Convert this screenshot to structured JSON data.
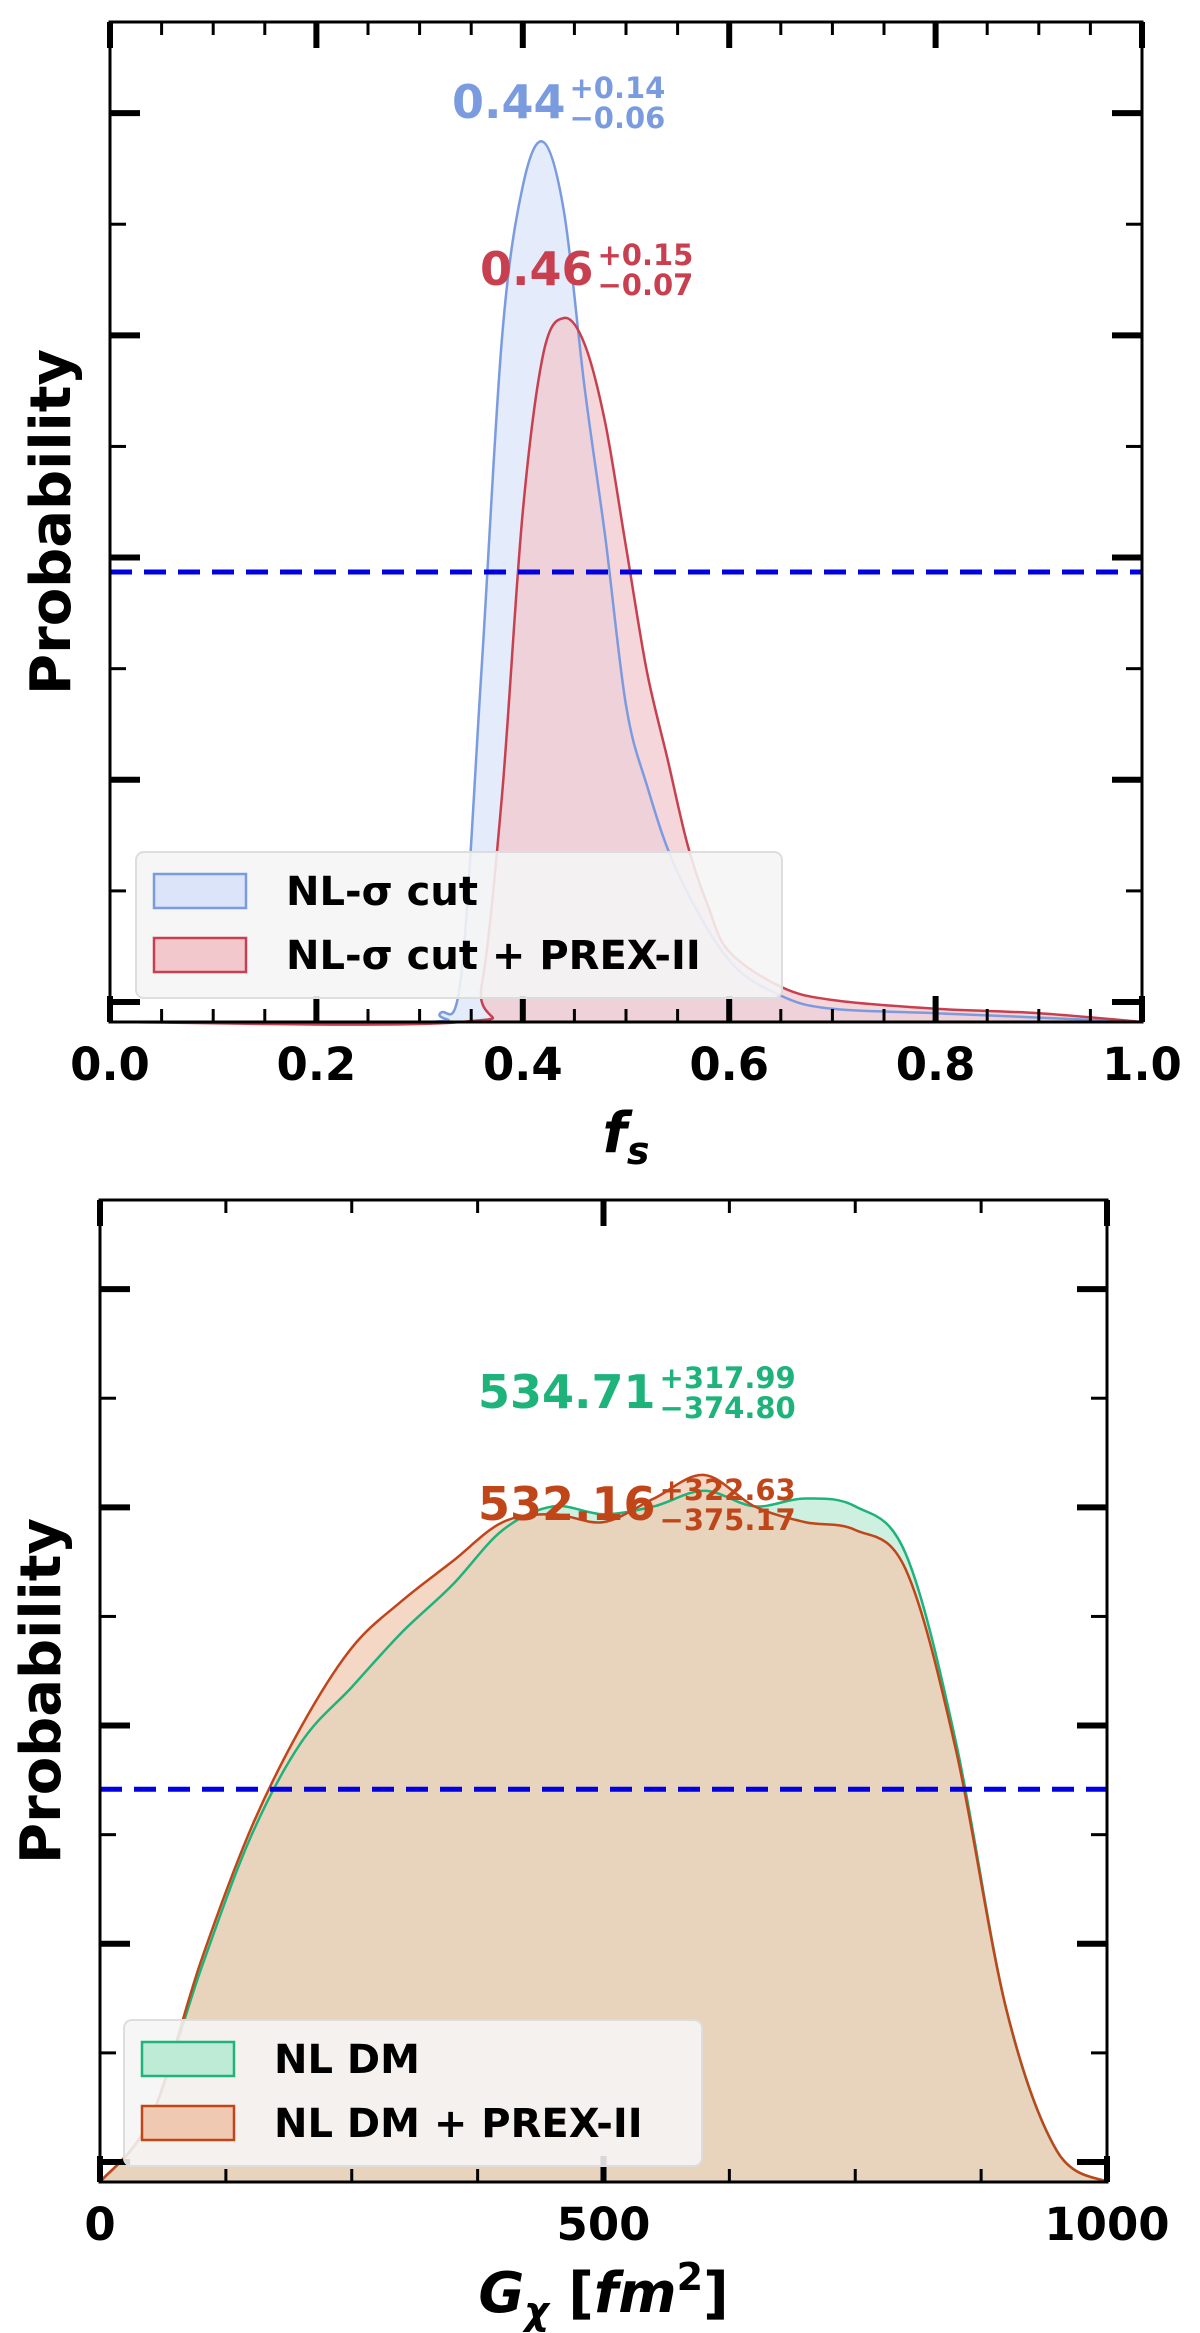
{
  "chart_data": [
    {
      "type": "area",
      "xlabel": "f",
      "xlabel_sub": "s",
      "ylabel": "Probability",
      "xlim": [
        0.0,
        1.0
      ],
      "x_ticks": [
        "0.0",
        "0.2",
        "0.4",
        "0.6",
        "0.8",
        "1.0"
      ],
      "x_tick_values": [
        0.0,
        0.2,
        0.4,
        0.6,
        0.8,
        1.0
      ],
      "legend_position": "lower-left",
      "reference_line": {
        "style": "dashed",
        "color": "#0000e0",
        "relative_height": 0.45
      },
      "series": [
        {
          "name": "NL-σ cut",
          "color": "#7b9be0",
          "fill": "#dbe4f8",
          "x": [
            0.0,
            0.3,
            0.32,
            0.34,
            0.36,
            0.38,
            0.4,
            0.42,
            0.44,
            0.46,
            0.48,
            0.5,
            0.52,
            0.55,
            0.6,
            0.65,
            0.7,
            0.8,
            0.9,
            1.0
          ],
          "y": [
            0.0,
            0.0,
            0.01,
            0.05,
            0.4,
            0.78,
            0.95,
            1.0,
            0.92,
            0.72,
            0.55,
            0.36,
            0.27,
            0.17,
            0.07,
            0.03,
            0.015,
            0.01,
            0.005,
            0.0
          ],
          "annotation": {
            "value": "0.44",
            "upper": "+0.14",
            "lower": "−0.06"
          }
        },
        {
          "name": "NL-σ cut + PREX-II",
          "color": "#c8404f",
          "fill": "#f2c8cd",
          "x": [
            0.0,
            0.34,
            0.36,
            0.38,
            0.4,
            0.42,
            0.44,
            0.46,
            0.48,
            0.5,
            0.52,
            0.54,
            0.56,
            0.58,
            0.6,
            0.65,
            0.7,
            0.8,
            0.9,
            1.0
          ],
          "y": [
            0.0,
            0.0,
            0.04,
            0.26,
            0.58,
            0.76,
            0.8,
            0.77,
            0.68,
            0.54,
            0.4,
            0.3,
            0.2,
            0.13,
            0.08,
            0.04,
            0.025,
            0.015,
            0.01,
            0.0
          ],
          "annotation": {
            "value": "0.46",
            "upper": "+0.15",
            "lower": "−0.07"
          }
        }
      ]
    },
    {
      "type": "area",
      "xlabel": "G",
      "xlabel_sub": "χ",
      "xlabel_unit": "fm",
      "xlabel_sup": "2",
      "ylabel": "Probability",
      "xlim": [
        0,
        1000
      ],
      "x_ticks": [
        "0",
        "500",
        "1000"
      ],
      "x_tick_values": [
        0,
        500,
        1000
      ],
      "legend_position": "lower-left",
      "reference_line": {
        "style": "dashed",
        "color": "#0000e0",
        "relative_height": 0.4
      },
      "series": [
        {
          "name": "NL DM",
          "color": "#1db37a",
          "fill": "#bdebd5",
          "x": [
            0,
            50,
            100,
            150,
            200,
            250,
            300,
            350,
            400,
            450,
            500,
            550,
            600,
            650,
            700,
            750,
            800,
            850,
            900,
            950,
            1000
          ],
          "y": [
            0.0,
            0.08,
            0.27,
            0.44,
            0.56,
            0.63,
            0.7,
            0.76,
            0.83,
            0.86,
            0.85,
            0.86,
            0.88,
            0.86,
            0.87,
            0.86,
            0.8,
            0.56,
            0.22,
            0.04,
            0.0
          ],
          "annotation": {
            "value": "534.71",
            "upper": "+317.99",
            "lower": "−374.80"
          }
        },
        {
          "name": "NL DM + PREX-II",
          "color": "#c0461a",
          "fill": "#f0c9b2",
          "x": [
            0,
            50,
            100,
            150,
            200,
            250,
            300,
            350,
            400,
            450,
            500,
            550,
            600,
            650,
            700,
            750,
            800,
            850,
            900,
            950,
            1000
          ],
          "y": [
            0.0,
            0.08,
            0.28,
            0.45,
            0.58,
            0.68,
            0.74,
            0.79,
            0.84,
            0.85,
            0.84,
            0.87,
            0.9,
            0.86,
            0.84,
            0.83,
            0.78,
            0.55,
            0.22,
            0.04,
            0.0
          ],
          "annotation": {
            "value": "532.16",
            "upper": "+322.63",
            "lower": "−375.17"
          }
        }
      ]
    }
  ]
}
